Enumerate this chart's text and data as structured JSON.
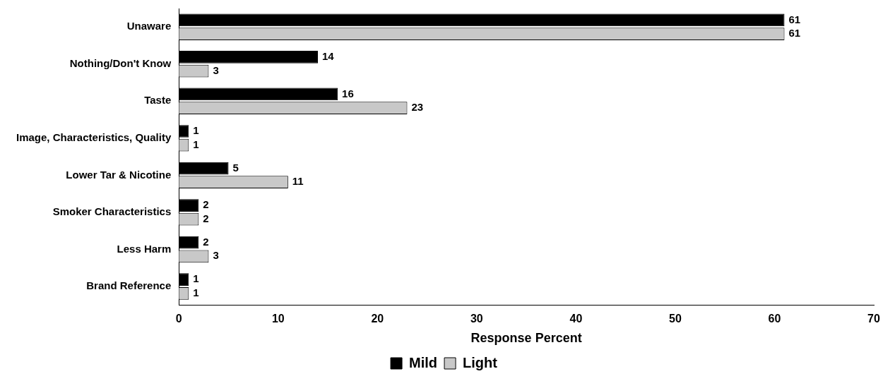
{
  "chart_data": {
    "type": "bar",
    "orientation": "horizontal",
    "xlabel": "Response Percent",
    "categories": [
      "Unaware",
      "Nothing/Don't Know",
      "Taste",
      "Image, Characteristics, Quality",
      "Lower Tar & Nicotine",
      "Smoker Characteristics",
      "Less Harm",
      "Brand Reference"
    ],
    "series": [
      {
        "name": "Mild",
        "color": "#000000",
        "values": [
          61,
          14,
          16,
          1,
          5,
          2,
          2,
          1
        ]
      },
      {
        "name": "Light",
        "color": "#c8c8c8",
        "values": [
          61,
          3,
          23,
          1,
          11,
          2,
          3,
          1
        ]
      }
    ],
    "xlim": [
      0,
      70
    ],
    "xticks": [
      0,
      10,
      20,
      30,
      40,
      50,
      60,
      70
    ],
    "grid": false,
    "legend": "bottom",
    "data_labels": true
  }
}
